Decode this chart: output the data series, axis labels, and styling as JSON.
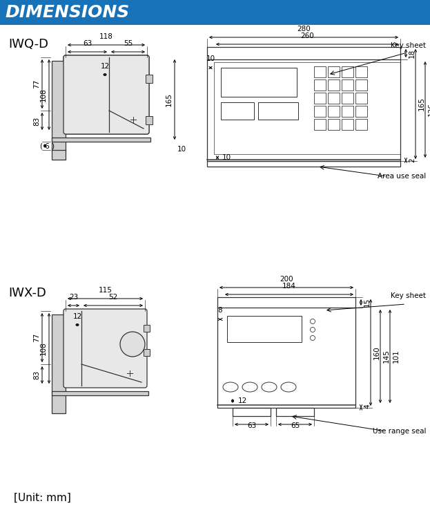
{
  "title": "DIMENSIONS",
  "title_bg": "#1872b8",
  "title_color": "#ffffff",
  "line_color": "#333333",
  "bg_color": "#ffffff",
  "section1_label": "IWQ-D",
  "section2_label": "IWX-D",
  "unit_label": "[Unit: mm]"
}
